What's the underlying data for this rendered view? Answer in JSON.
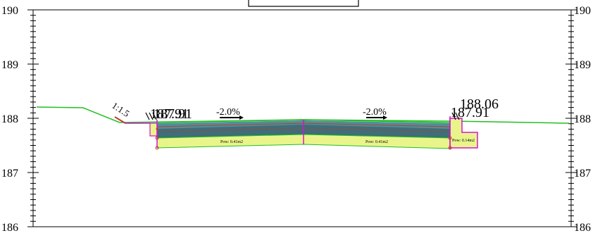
{
  "y_axis": {
    "left_labels": [
      "190",
      "189",
      "188",
      "187",
      "186"
    ],
    "right_labels": [
      "190",
      "189",
      "188",
      "187",
      "186"
    ]
  },
  "slope_label": "1:1.5",
  "left_elevation_label": "187.91",
  "right_elevation_labels": [
    "188.06",
    "187.91"
  ],
  "crossfall_left": "-2.0%",
  "crossfall_right": "-2.0%",
  "area_labels": [
    "Pow: 0.41m2",
    "Pow: 0.41m2",
    "Pow: 0.14m2"
  ],
  "colors": {
    "ground_line": "#22c022",
    "boundary": "#d414d4",
    "asphalt_top": "#4f8f9a",
    "base_layer": "#3f6d78",
    "subbase": "#e9f58a",
    "accent_red": "#c23a2a"
  }
}
